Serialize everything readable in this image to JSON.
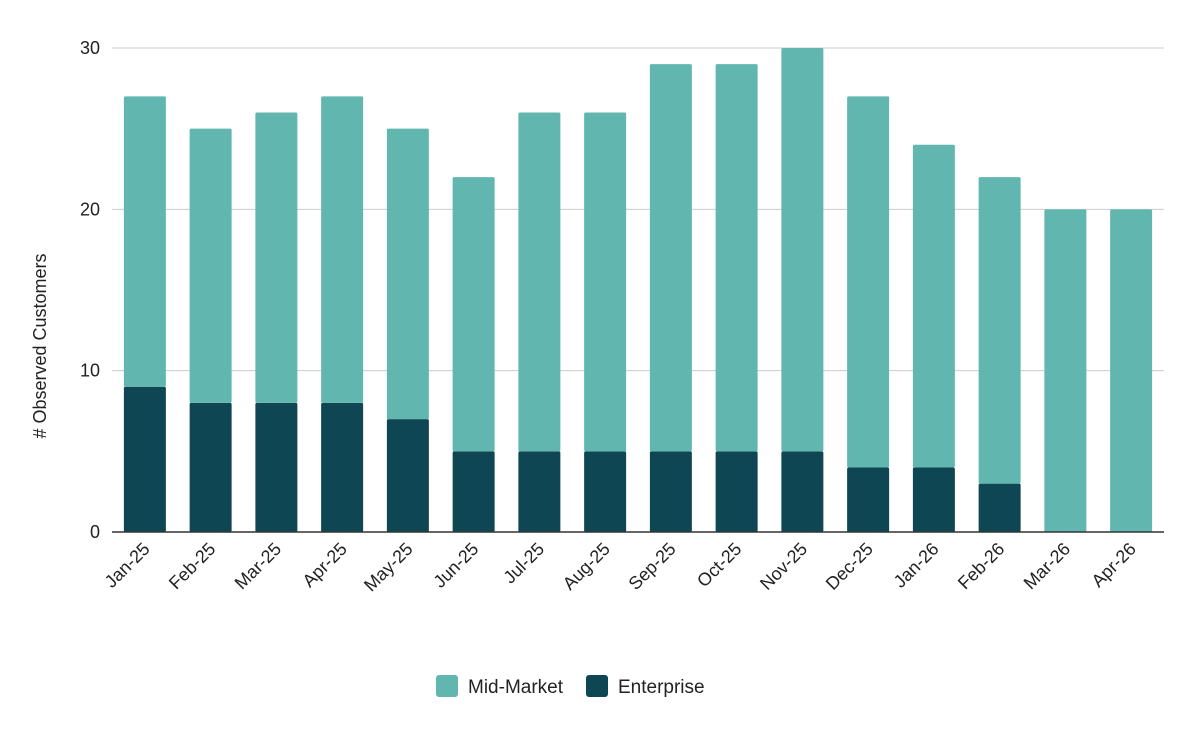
{
  "chart_data": {
    "type": "bar",
    "stacked": true,
    "categories": [
      "Jan-25",
      "Feb-25",
      "Mar-25",
      "Apr-25",
      "May-25",
      "Jun-25",
      "Jul-25",
      "Aug-25",
      "Sep-25",
      "Oct-25",
      "Nov-25",
      "Dec-25",
      "Jan-26",
      "Feb-26",
      "Mar-26",
      "Apr-26"
    ],
    "series": [
      {
        "name": "Enterprise",
        "color": "#0f4653",
        "values": [
          9,
          8,
          8,
          8,
          7,
          5,
          5,
          5,
          5,
          5,
          5,
          4,
          4,
          3,
          0,
          0
        ]
      },
      {
        "name": "Mid-Market",
        "color": "#61b7b0",
        "values": [
          18,
          17,
          18,
          19,
          18,
          17,
          21,
          21,
          24,
          24,
          25,
          23,
          20,
          19,
          20,
          20
        ]
      }
    ],
    "legend_order": [
      "Mid-Market",
      "Enterprise"
    ],
    "legend_position": "bottom",
    "title": "",
    "xlabel": "",
    "ylabel": "# Observed Customers",
    "ylim": [
      0,
      30
    ],
    "yticks": [
      0,
      10,
      20,
      30
    ],
    "grid": true
  }
}
